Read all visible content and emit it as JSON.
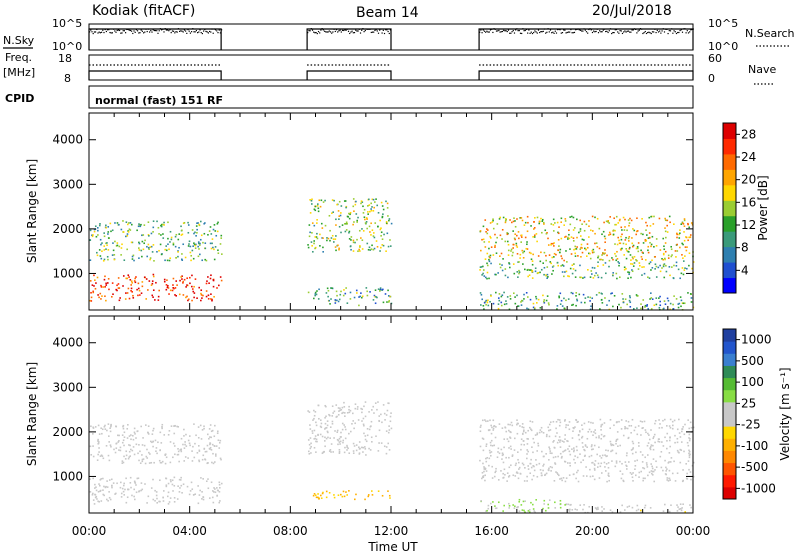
{
  "header": {
    "radar": "Kodiak (fitACF)",
    "beam": "Beam 14",
    "date": "20/Jul/2018"
  },
  "top_panels": {
    "nsky_label": "N.Sky",
    "nsearch_label": "N.Search",
    "nsky_ticks": [
      "10^5",
      "10^0"
    ],
    "freq_label_1": "Freq.",
    "freq_label_2": "[MHz]",
    "freq_ticks": [
      "18",
      "8"
    ],
    "nave_label": "Nave",
    "nave_ticks": [
      "60",
      "0"
    ],
    "cpid_label": "CPID",
    "cpid_text": "normal (fast) 151 RF"
  },
  "axes": {
    "ylabel": "Slant Range [km]",
    "yticks": [
      "4000",
      "3000",
      "2000",
      "1000"
    ],
    "xlabel": "Time UT",
    "xticks": [
      "00:00",
      "04:00",
      "08:00",
      "12:00",
      "16:00",
      "20:00",
      "00:00"
    ]
  },
  "power_colorbar": {
    "label": "Power [dB]",
    "ticks": [
      "28",
      "24",
      "20",
      "16",
      "12",
      "8",
      "4"
    ],
    "colors": [
      "#0000ff",
      "#1f4fd0",
      "#2e7fb0",
      "#3a9a7a",
      "#2aa02a",
      "#9acd32",
      "#ffd700",
      "#ffa500",
      "#ff6a00",
      "#ff2a00",
      "#dd0000"
    ]
  },
  "velocity_colorbar": {
    "label": "Velocity [m s⁻¹]",
    "ticks": [
      "1000",
      "500",
      "100",
      "25",
      "-25",
      "-100",
      "-500",
      "-1000"
    ],
    "colors": [
      "#1f3f9f",
      "#2255cc",
      "#3a7fd0",
      "#2e8b57",
      "#55bb33",
      "#88dd44",
      "#c8c8c8",
      "#c8c8c8",
      "#ffd700",
      "#ffb000",
      "#ff8800",
      "#ff5500",
      "#ff1a00",
      "#dd0000"
    ]
  },
  "chart_data": [
    {
      "type": "heatmap",
      "title": "Power",
      "xlabel": "Time UT",
      "ylabel": "Slant Range [km]",
      "xlim": [
        "00:00",
        "24:00"
      ],
      "ylim": [
        180,
        4600
      ],
      "colorbar_range_dB": [
        0,
        30
      ],
      "observation_windows_UT": [
        [
          "00:00",
          "05:15"
        ],
        [
          "08:40",
          "12:00"
        ],
        [
          "15:30",
          "24:00"
        ]
      ],
      "echo_features": [
        {
          "time_UT": [
            "00:00",
            "05:15"
          ],
          "range_km": [
            400,
            1000
          ],
          "power_dB": 28
        },
        {
          "time_UT": [
            "00:00",
            "05:15"
          ],
          "range_km": [
            1300,
            2200
          ],
          "power_dB": 12
        },
        {
          "time_UT": [
            "08:40",
            "12:00"
          ],
          "range_km": [
            1500,
            2700
          ],
          "power_dB": 14
        },
        {
          "time_UT": [
            "08:40",
            "12:00"
          ],
          "range_km": [
            300,
            700
          ],
          "power_dB": 10
        },
        {
          "time_UT": [
            "15:30",
            "24:00"
          ],
          "range_km": [
            1300,
            2300
          ],
          "power_dB": 18
        },
        {
          "time_UT": [
            "15:30",
            "24:00"
          ],
          "range_km": [
            900,
            1300
          ],
          "power_dB": 12
        },
        {
          "time_UT": [
            "15:30",
            "24:00"
          ],
          "range_km": [
            200,
            600
          ],
          "power_dB": 10
        }
      ]
    },
    {
      "type": "heatmap",
      "title": "Velocity",
      "xlabel": "Time UT",
      "ylabel": "Slant Range [km]",
      "xlim": [
        "00:00",
        "24:00"
      ],
      "ylim": [
        180,
        4600
      ],
      "colorbar_range_ms": [
        -1000,
        1000
      ],
      "echo_features": [
        {
          "time_UT": [
            "00:00",
            "05:15"
          ],
          "range_km": [
            400,
            1000
          ],
          "velocity_ms": 0
        },
        {
          "time_UT": [
            "00:00",
            "05:15"
          ],
          "range_km": [
            1300,
            2200
          ],
          "velocity_ms": 0
        },
        {
          "time_UT": [
            "08:40",
            "12:00"
          ],
          "range_km": [
            1500,
            2700
          ],
          "velocity_ms": 0
        },
        {
          "time_UT": [
            "08:40",
            "12:00"
          ],
          "range_km": [
            500,
            700
          ],
          "velocity_ms": -300
        },
        {
          "time_UT": [
            "15:30",
            "24:00"
          ],
          "range_km": [
            1300,
            2300
          ],
          "velocity_ms": 0
        },
        {
          "time_UT": [
            "15:30",
            "24:00"
          ],
          "range_km": [
            900,
            1300
          ],
          "velocity_ms": 0
        },
        {
          "time_UT": [
            "15:30",
            "19:00"
          ],
          "range_km": [
            200,
            500
          ],
          "velocity_ms": 150
        },
        {
          "time_UT": [
            "19:00",
            "24:00"
          ],
          "range_km": [
            200,
            400
          ],
          "velocity_ms": -100
        }
      ]
    }
  ]
}
